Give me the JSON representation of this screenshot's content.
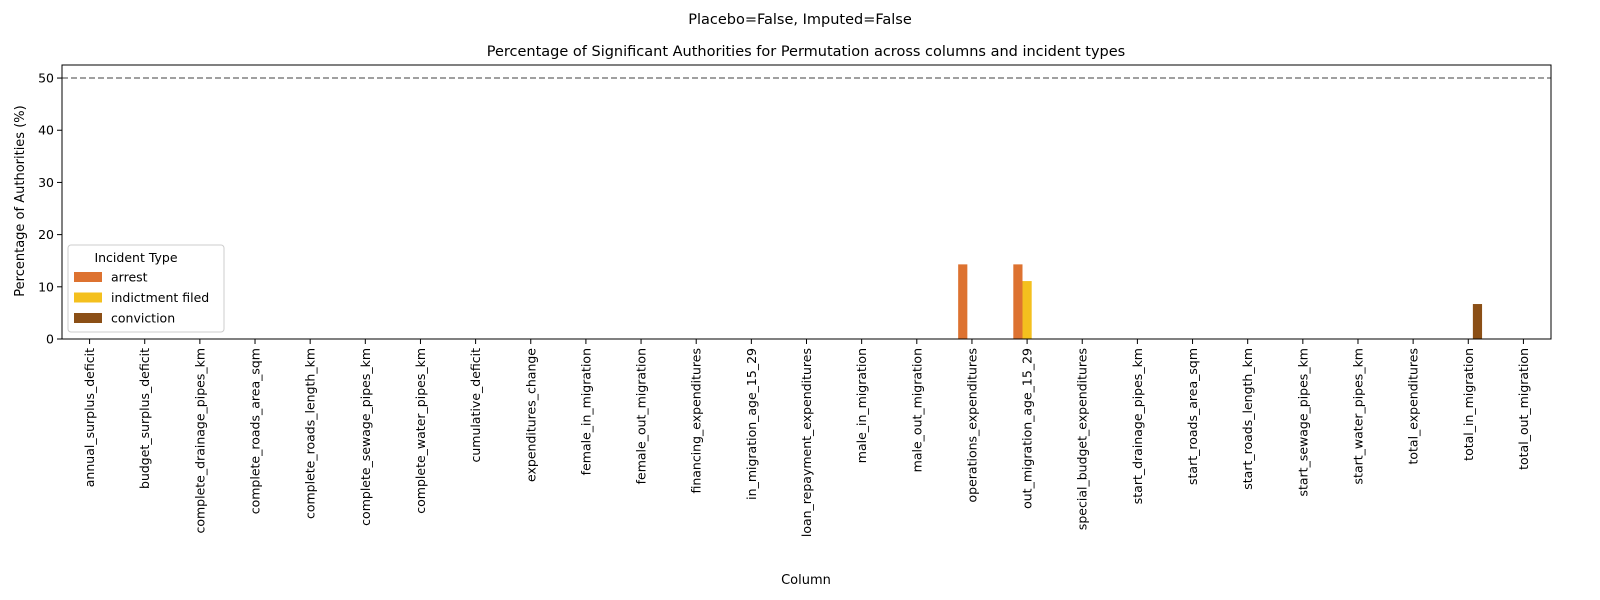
{
  "suptitle": "Placebo=False, Imputed=False",
  "chart_data": {
    "type": "bar",
    "title": "Percentage of Significant Authorities for Permutation across columns and incident types",
    "xlabel": "Column",
    "ylabel": "Percentage of Authorities (%)",
    "ylim": [
      0,
      52.5
    ],
    "yticks": [
      0,
      10,
      20,
      30,
      40,
      50
    ],
    "grid": false,
    "reference_line": {
      "y": 50,
      "style": "dashed",
      "color": "#808080"
    },
    "legend": {
      "title": "Incident Type",
      "placement": "center-left"
    },
    "categories": [
      "annual_surplus_deficit",
      "budget_surplus_deficit",
      "complete_drainage_pipes_km",
      "complete_roads_area_sqm",
      "complete_roads_length_km",
      "complete_sewage_pipes_km",
      "complete_water_pipes_km",
      "cumulative_deficit",
      "expenditures_change",
      "female_in_migration",
      "female_out_migration",
      "financing_expenditures",
      "in_migration_age_15_29",
      "loan_repayment_expenditures",
      "male_in_migration",
      "male_out_migration",
      "operations_expenditures",
      "out_migration_age_15_29",
      "special_budget_expenditures",
      "start_drainage_pipes_km",
      "start_roads_area_sqm",
      "start_roads_length_km",
      "start_sewage_pipes_km",
      "start_water_pipes_km",
      "total_expenditures",
      "total_in_migration",
      "total_out_migration"
    ],
    "series": [
      {
        "name": "arrest",
        "color": "#DD7230",
        "values": [
          0,
          0,
          0,
          0,
          0,
          0,
          0,
          0,
          0,
          0,
          0,
          0,
          0,
          0,
          0,
          0,
          14.3,
          14.3,
          0,
          0,
          0,
          0,
          0,
          0,
          0,
          0,
          0
        ]
      },
      {
        "name": "indictment filed",
        "color": "#F4C01E",
        "values": [
          0,
          0,
          0,
          0,
          0,
          0,
          0,
          0,
          0,
          0,
          0,
          0,
          0,
          0,
          0,
          0,
          0,
          11.1,
          0,
          0,
          0,
          0,
          0,
          0,
          0,
          0,
          0
        ]
      },
      {
        "name": "conviction",
        "color": "#8B4F16",
        "values": [
          0,
          0,
          0,
          0,
          0,
          0,
          0,
          0,
          0,
          0,
          0,
          0,
          0,
          0,
          0,
          0,
          0,
          0,
          0,
          0,
          0,
          0,
          0,
          0,
          0,
          6.7,
          0
        ]
      }
    ]
  }
}
